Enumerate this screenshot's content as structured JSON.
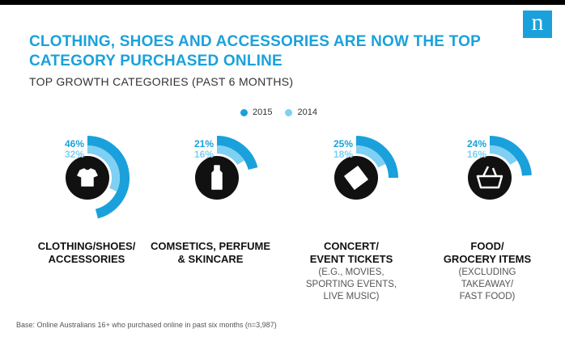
{
  "title": "CLOTHING, SHOES AND ACCESSORIES ARE NOW THE TOP CATEGORY PURCHASED ONLINE",
  "subtitle": "TOP GROWTH CATEGORIES (PAST 6 MONTHS)",
  "logo_text": "n",
  "base_note": "Base: Online Australians 16+ who purchased online in past six months (n=3,987)",
  "colors": {
    "s2015": "#1aa1dc",
    "s2014": "#7fd0f2",
    "icon": "#111111",
    "accent": "#1aa1dc"
  },
  "chart_data": {
    "type": "radial-bar",
    "series": [
      {
        "name": "2015",
        "values": [
          46,
          21,
          25,
          24
        ]
      },
      {
        "name": "2014",
        "values": [
          32,
          16,
          18,
          16
        ]
      }
    ],
    "categories": [
      {
        "label": "CLOTHING/SHOES/\nACCESSORIES",
        "note": "",
        "icon": "tshirt-icon"
      },
      {
        "label": "COMSETICS, PERFUME\n& SKINCARE",
        "note": "",
        "icon": "cosmetic-bottle-icon"
      },
      {
        "label": "CONCERT/\nEVENT TICKETS",
        "note": "(E.G., MOVIES,\nSPORTING EVENTS,\nLIVE MUSIC)",
        "icon": "ticket-icon"
      },
      {
        "label": "FOOD/\nGROCERY ITEMS",
        "note": "(EXCLUDING\nTAKEAWAY/\nFAST FOOD)",
        "icon": "basket-icon"
      }
    ],
    "value_labels": {
      "s2015": [
        "46%",
        "21%",
        "25%",
        "24%"
      ],
      "s2014": [
        "32%",
        "16%",
        "18%",
        "16%"
      ]
    },
    "legend_position": "top-center"
  }
}
